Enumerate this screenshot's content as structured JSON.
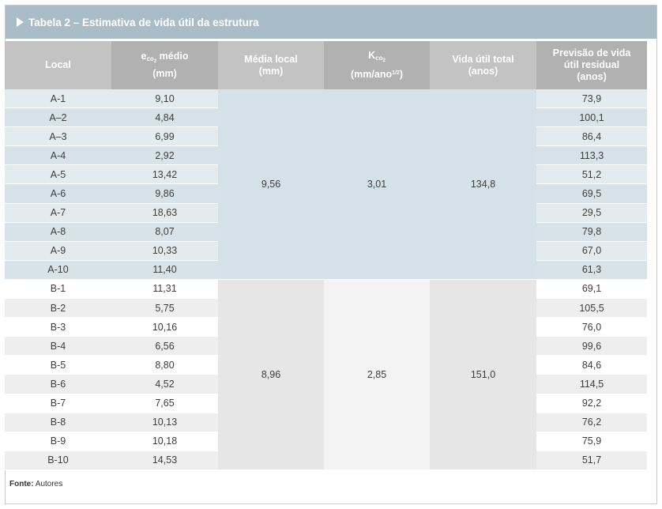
{
  "title": "Tabela 2 – Estimativa de vida útil da estrutura",
  "headers": {
    "local": "Local",
    "e_main": "e",
    "e_sub": "co",
    "e_subsub": "2",
    "e_rest": " médio",
    "e_unit": "(mm)",
    "media_line1": "Média local",
    "media_line2": "(mm)",
    "k_main": "K",
    "k_sub": "co",
    "k_subsub": "2",
    "k_unit_pre": "(mm/ano",
    "k_unit_sup": "1/2",
    "k_unit_post": ")",
    "vida_line1": "Vida útil total",
    "vida_line2": "(anos)",
    "prev_line1": "Previsão de vida",
    "prev_line2": "útil residual",
    "prev_line3": "(anos)"
  },
  "group_a": {
    "media": "9,56",
    "k": "3,01",
    "vida_total": "134,8",
    "rows": [
      {
        "local": "A-1",
        "e": "9,10",
        "residual": "73,9"
      },
      {
        "local": "A–2",
        "e": "4,84",
        "residual": "100,1"
      },
      {
        "local": "A–3",
        "e": "6,99",
        "residual": "86,4"
      },
      {
        "local": "A-4",
        "e": "2,92",
        "residual": "113,3"
      },
      {
        "local": "A-5",
        "e": "13,42",
        "residual": "51,2"
      },
      {
        "local": "A-6",
        "e": "9,86",
        "residual": "69,5"
      },
      {
        "local": "A-7",
        "e": "18,63",
        "residual": "29,5"
      },
      {
        "local": "A-8",
        "e": "8,07",
        "residual": "79,8"
      },
      {
        "local": "A-9",
        "e": "10,33",
        "residual": "67,0"
      },
      {
        "local": "A-10",
        "e": "11,40",
        "residual": "61,3"
      }
    ]
  },
  "group_b": {
    "media": "8,96",
    "k": "2,85",
    "vida_total": "151,0",
    "rows": [
      {
        "local": "B-1",
        "e": "11,31",
        "residual": "69,1"
      },
      {
        "local": "B-2",
        "e": "5,75",
        "residual": "105,5"
      },
      {
        "local": "B-3",
        "e": "10,16",
        "residual": "76,0"
      },
      {
        "local": "B-4",
        "e": "6,56",
        "residual": "99,6"
      },
      {
        "local": "B-5",
        "e": "8,80",
        "residual": "84,6"
      },
      {
        "local": "B-6",
        "e": "4,52",
        "residual": "114,5"
      },
      {
        "local": "B-7",
        "e": "7,65",
        "residual": "92,2"
      },
      {
        "local": "B-8",
        "e": "10,13",
        "residual": "76,2"
      },
      {
        "local": "B-9",
        "e": "10,18",
        "residual": "75,9"
      },
      {
        "local": "B-10",
        "e": "14,53",
        "residual": "51,7"
      }
    ]
  },
  "footer": {
    "label": "Fonte:",
    "text": " Autores"
  },
  "colors": {
    "title_bar": "#a9bdc8",
    "header_light": "#c3c3c3",
    "header_dark": "#b1b1b1",
    "group_a_tint": "#d5e1e8",
    "group_b_tint": "#e6e6e6"
  }
}
